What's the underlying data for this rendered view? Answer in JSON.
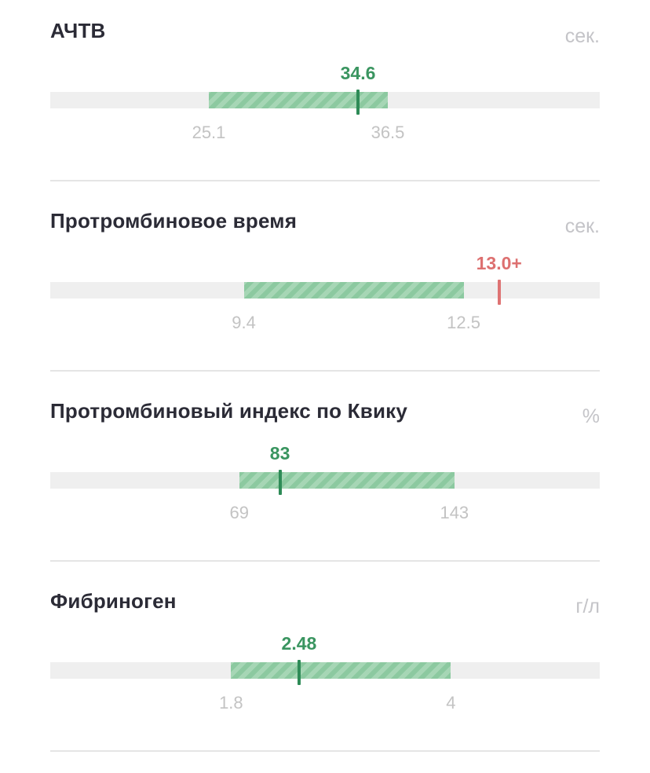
{
  "tests": [
    {
      "title": "АЧТВ",
      "unit": "сек.",
      "ref_low": "25.1",
      "ref_high": "36.5",
      "value": "34.6",
      "status": "normal",
      "scale": {
        "min": 15.0,
        "max": 50.0
      },
      "ref_low_num": 25.1,
      "ref_high_num": 36.5,
      "value_num": 34.6
    },
    {
      "title": "Протромбиновое время",
      "unit": "сек.",
      "ref_low": "9.4",
      "ref_high": "12.5",
      "value": "13.0+",
      "status": "high",
      "scale": {
        "min": 6.67,
        "max": 14.42
      },
      "ref_low_num": 9.4,
      "ref_high_num": 12.5,
      "value_num": 13.0
    },
    {
      "title": "Протромбиновый индекс по Квику",
      "unit": "%",
      "ref_low": "69",
      "ref_high": "143",
      "value": "83",
      "status": "normal",
      "scale": {
        "min": 4.0,
        "max": 193.0
      },
      "ref_low_num": 69,
      "ref_high_num": 143,
      "value_num": 83
    },
    {
      "title": "Фибриноген",
      "unit": "г/л",
      "ref_low": "1.8",
      "ref_high": "4",
      "value": "2.48",
      "status": "normal",
      "scale": {
        "min": -0.01,
        "max": 5.49
      },
      "ref_low_num": 1.8,
      "ref_high_num": 4.0,
      "value_num": 2.48
    }
  ],
  "colors": {
    "normal": "#2e8b57",
    "high": "#de7373",
    "range_fill": "#8cc9a0",
    "track": "#efefef"
  }
}
